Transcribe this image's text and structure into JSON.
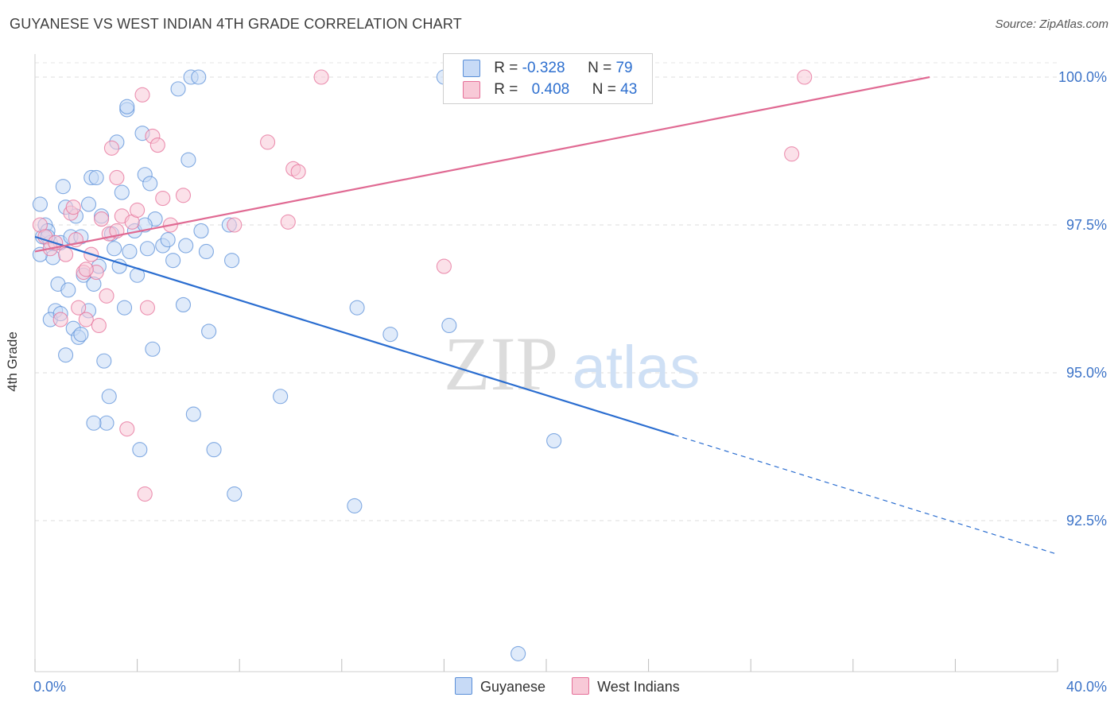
{
  "title": "GUYANESE VS WEST INDIAN 4TH GRADE CORRELATION CHART",
  "source": "Source: ZipAtlas.com",
  "watermark": {
    "zip": "ZIP",
    "atlas": "atlas"
  },
  "chart_data": {
    "type": "scatter",
    "ylabel": "4th Grade",
    "xlim": [
      0,
      40
    ],
    "ylim": [
      90.0,
      100.2
    ],
    "x_tick_labels": [
      "0.0%",
      "40.0%"
    ],
    "y_ticks": [
      92.5,
      95.0,
      97.5,
      100.0
    ],
    "y_tick_labels": [
      "92.5%",
      "95.0%",
      "97.5%",
      "100.0%"
    ],
    "grid": true,
    "legend": [
      {
        "label": "R = ",
        "r": "-0.328",
        "nlabel": "N = ",
        "n": "79",
        "color": "#5a8fd8",
        "fill": "#c7daf6"
      },
      {
        "label": "R = ",
        "r": "0.408",
        "nlabel": "N = ",
        "n": "43",
        "color": "#e56f98",
        "fill": "#f8c9d7"
      }
    ],
    "series": [
      {
        "name": "Guyanese",
        "color": "#5a8fd8",
        "fill": "#c7daf6",
        "trend": {
          "x0": 0,
          "y0": 97.3,
          "x1": 25.0,
          "y1": 93.95,
          "dash_to_x": 40,
          "dash_to_y": 91.93
        },
        "points": [
          [
            0.2,
            97.85
          ],
          [
            0.3,
            97.3
          ],
          [
            0.4,
            97.5
          ],
          [
            0.5,
            97.4
          ],
          [
            0.6,
            97.2
          ],
          [
            0.7,
            96.95
          ],
          [
            0.8,
            96.05
          ],
          [
            0.9,
            96.5
          ],
          [
            0.6,
            95.9
          ],
          [
            1.0,
            97.2
          ],
          [
            1.1,
            98.15
          ],
          [
            1.2,
            97.8
          ],
          [
            1.3,
            96.4
          ],
          [
            1.4,
            97.3
          ],
          [
            1.5,
            95.75
          ],
          [
            1.6,
            97.65
          ],
          [
            1.0,
            96.0
          ],
          [
            1.2,
            95.3
          ],
          [
            1.7,
            95.6
          ],
          [
            1.9,
            96.65
          ],
          [
            1.8,
            95.65
          ],
          [
            2.1,
            96.05
          ],
          [
            2.2,
            98.3
          ],
          [
            2.3,
            96.5
          ],
          [
            2.5,
            96.8
          ],
          [
            2.6,
            97.65
          ],
          [
            2.7,
            95.2
          ],
          [
            2.9,
            94.6
          ],
          [
            3.0,
            97.35
          ],
          [
            3.1,
            97.1
          ],
          [
            3.2,
            98.9
          ],
          [
            3.3,
            96.8
          ],
          [
            3.4,
            98.05
          ],
          [
            3.5,
            96.1
          ],
          [
            3.6,
            99.45
          ],
          [
            3.7,
            97.05
          ],
          [
            3.9,
            97.4
          ],
          [
            4.0,
            96.65
          ],
          [
            4.1,
            93.7
          ],
          [
            4.2,
            99.05
          ],
          [
            4.3,
            98.35
          ],
          [
            4.4,
            97.1
          ],
          [
            4.5,
            98.2
          ],
          [
            4.6,
            95.4
          ],
          [
            4.7,
            97.6
          ],
          [
            5.0,
            97.15
          ],
          [
            5.2,
            97.25
          ],
          [
            5.4,
            96.9
          ],
          [
            5.6,
            99.8
          ],
          [
            5.8,
            96.15
          ],
          [
            5.9,
            97.15
          ],
          [
            6.0,
            98.6
          ],
          [
            6.1,
            100.0
          ],
          [
            6.2,
            94.3
          ],
          [
            6.4,
            100.0
          ],
          [
            6.5,
            97.4
          ],
          [
            6.7,
            97.05
          ],
          [
            6.8,
            95.7
          ],
          [
            7.0,
            93.7
          ],
          [
            7.6,
            97.5
          ],
          [
            7.7,
            96.9
          ],
          [
            7.8,
            92.95
          ],
          [
            9.6,
            94.6
          ],
          [
            12.5,
            92.75
          ],
          [
            12.6,
            96.1
          ],
          [
            13.9,
            95.65
          ],
          [
            16.2,
            95.8
          ],
          [
            20.3,
            93.85
          ],
          [
            18.9,
            90.25
          ],
          [
            1.8,
            97.3
          ],
          [
            2.4,
            98.3
          ],
          [
            3.6,
            99.5
          ],
          [
            0.2,
            97.0
          ],
          [
            0.5,
            97.3
          ],
          [
            2.8,
            94.15
          ],
          [
            2.3,
            94.15
          ],
          [
            4.3,
            97.5
          ],
          [
            2.1,
            97.85
          ],
          [
            16.0,
            100.0
          ]
        ]
      },
      {
        "name": "West Indians",
        "color": "#e56f98",
        "fill": "#f8c9d7",
        "trend": {
          "x0": 0,
          "y0": 97.05,
          "x1": 35.0,
          "y1": 100.0
        },
        "points": [
          [
            0.2,
            97.5
          ],
          [
            0.4,
            97.3
          ],
          [
            0.6,
            97.1
          ],
          [
            0.8,
            97.2
          ],
          [
            1.0,
            95.9
          ],
          [
            1.2,
            97.0
          ],
          [
            1.4,
            97.7
          ],
          [
            1.5,
            97.8
          ],
          [
            1.6,
            97.25
          ],
          [
            1.7,
            96.1
          ],
          [
            1.9,
            96.7
          ],
          [
            2.0,
            95.9
          ],
          [
            2.2,
            97.0
          ],
          [
            2.4,
            96.7
          ],
          [
            2.5,
            95.8
          ],
          [
            2.6,
            97.6
          ],
          [
            2.8,
            96.3
          ],
          [
            2.9,
            97.35
          ],
          [
            3.0,
            98.8
          ],
          [
            3.2,
            98.3
          ],
          [
            3.4,
            97.65
          ],
          [
            3.6,
            94.05
          ],
          [
            3.8,
            97.55
          ],
          [
            4.0,
            97.75
          ],
          [
            4.2,
            99.7
          ],
          [
            4.4,
            96.1
          ],
          [
            4.6,
            99.0
          ],
          [
            4.8,
            98.85
          ],
          [
            5.0,
            97.95
          ],
          [
            5.3,
            97.5
          ],
          [
            5.8,
            98.0
          ],
          [
            7.8,
            97.5
          ],
          [
            9.1,
            98.9
          ],
          [
            10.1,
            98.45
          ],
          [
            10.3,
            98.4
          ],
          [
            9.9,
            97.55
          ],
          [
            11.2,
            100.0
          ],
          [
            16.0,
            96.8
          ],
          [
            29.6,
            98.7
          ],
          [
            30.1,
            100.0
          ],
          [
            4.3,
            92.95
          ],
          [
            2.0,
            96.75
          ],
          [
            3.2,
            97.4
          ]
        ]
      }
    ]
  },
  "bottom_legend": [
    {
      "label": "Guyanese",
      "color": "#5a8fd8",
      "fill": "#c7daf6"
    },
    {
      "label": "West Indians",
      "color": "#e56f98",
      "fill": "#f8c9d7"
    }
  ]
}
